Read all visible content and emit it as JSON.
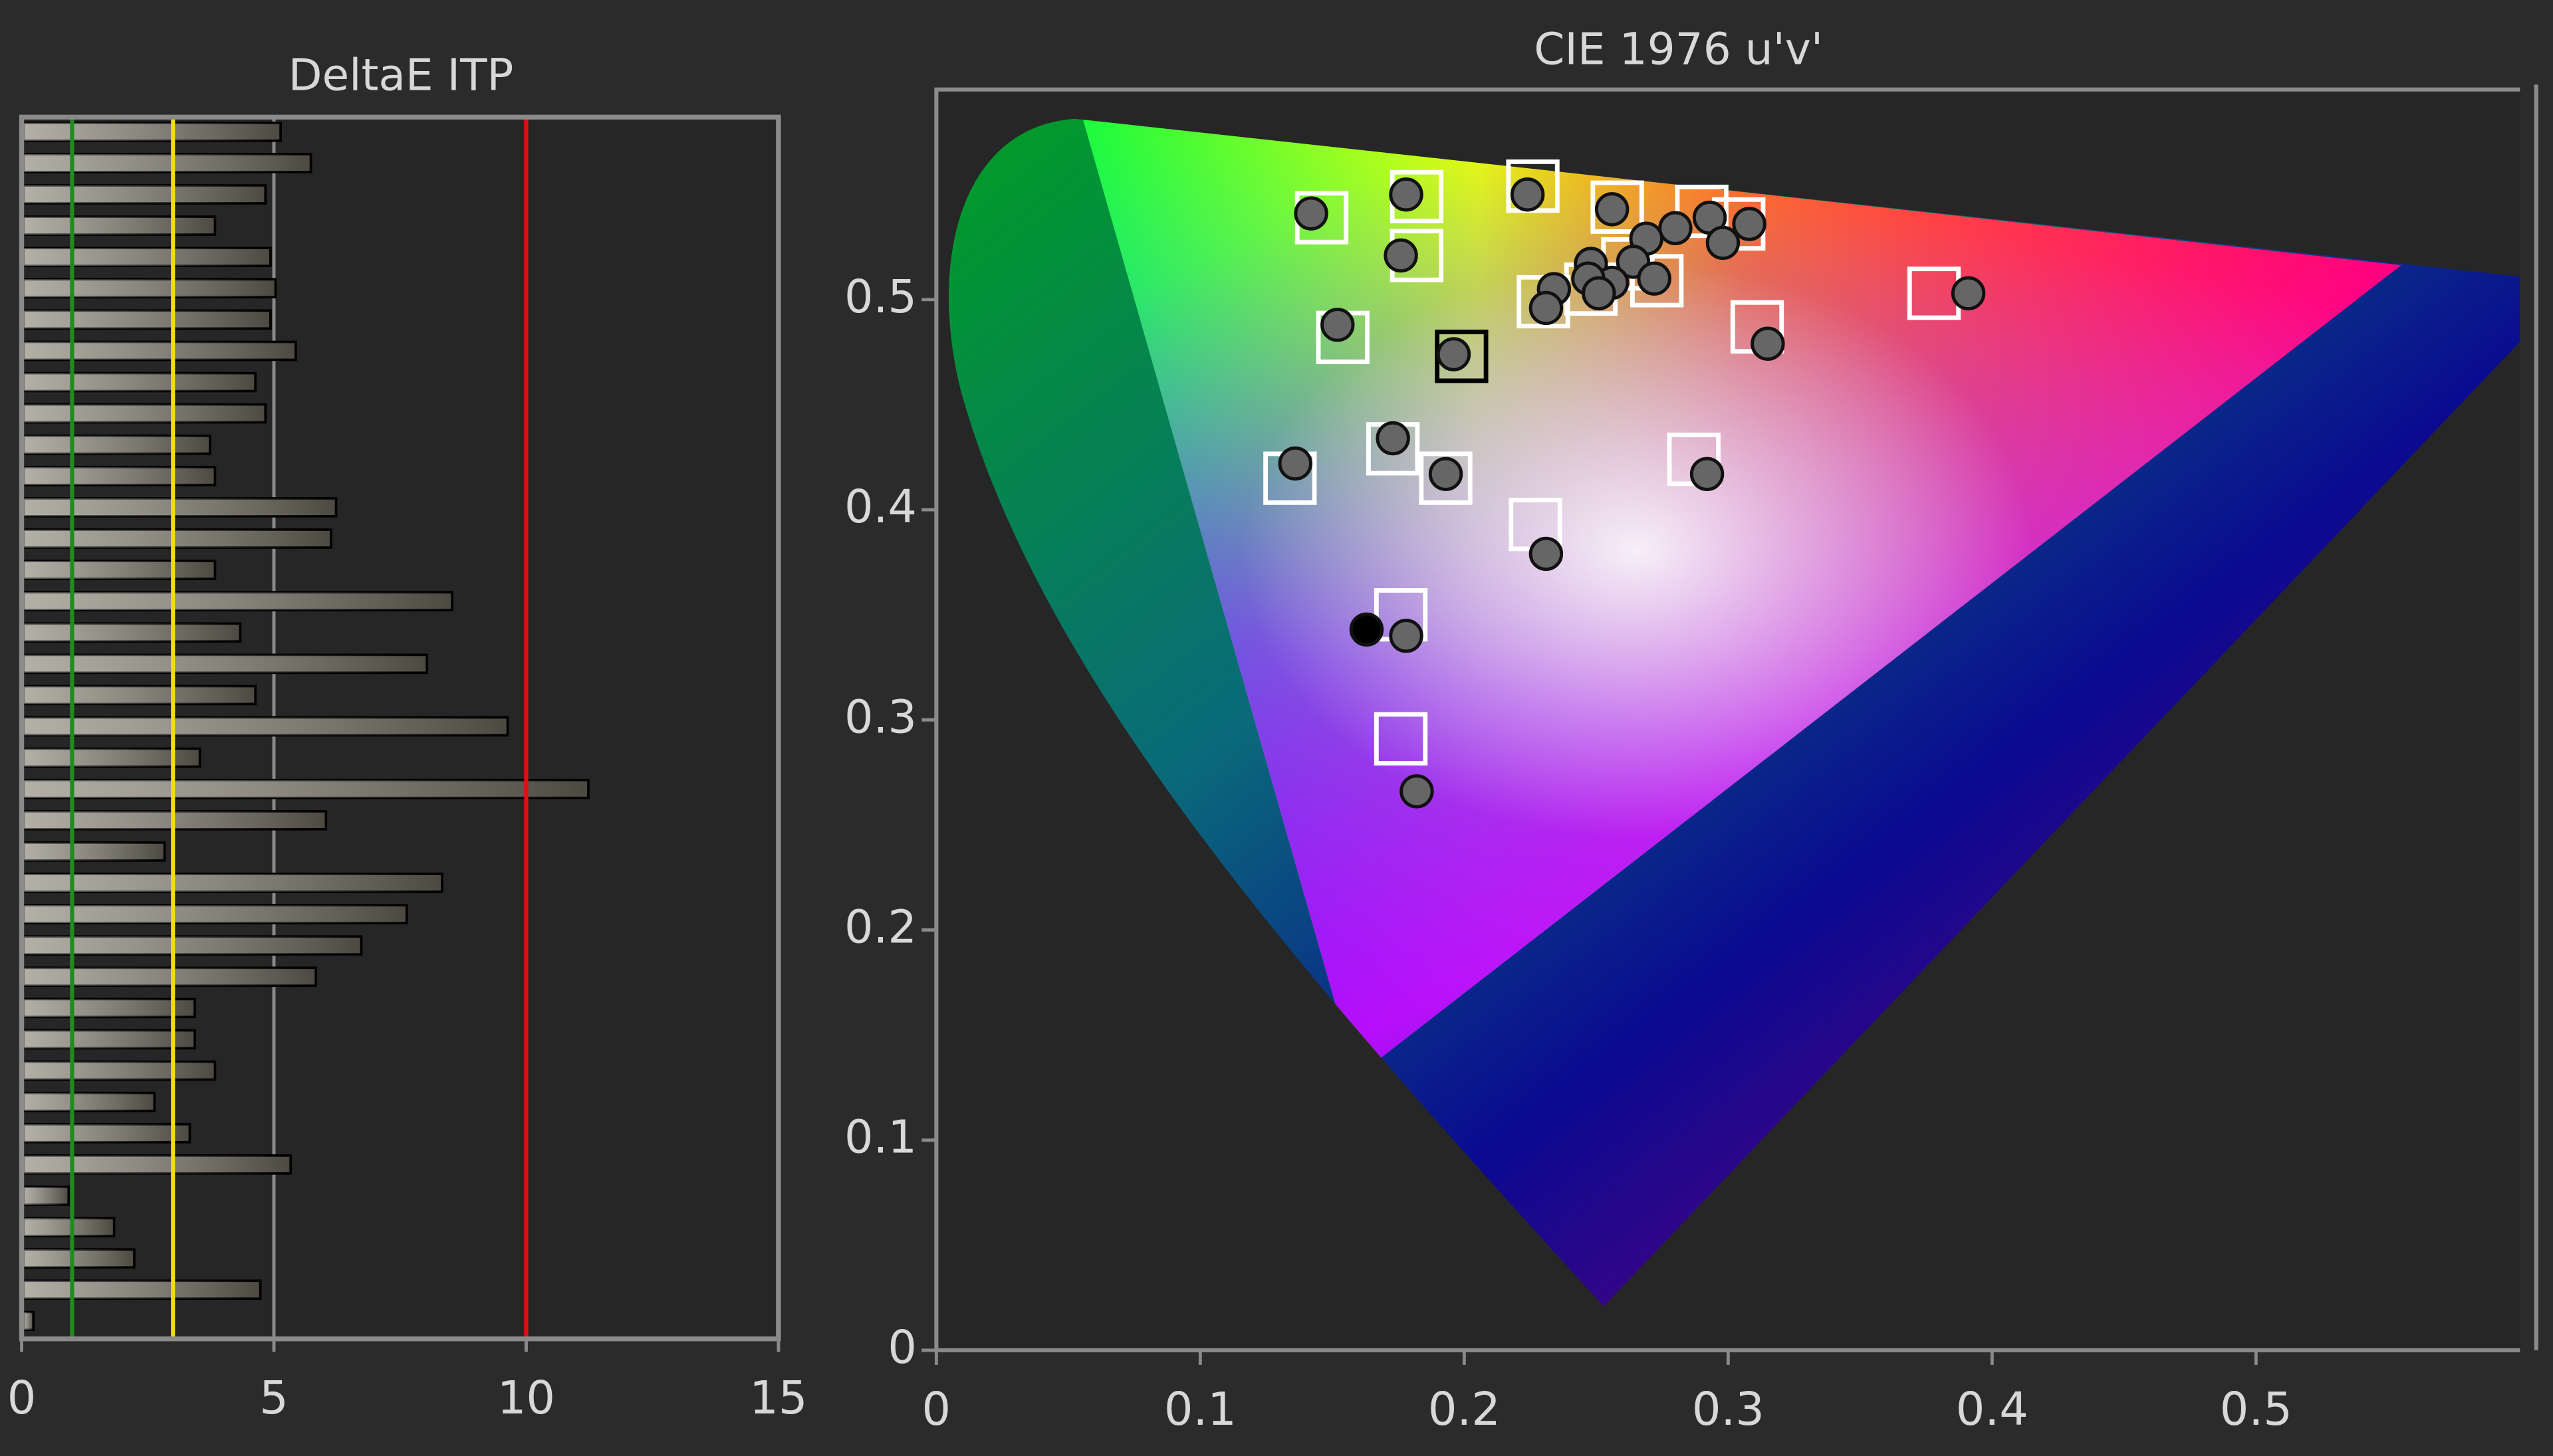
{
  "chart_data": [
    {
      "type": "bar",
      "orientation": "horizontal",
      "title": "DeltaE ITP",
      "values": [
        5.1,
        5.7,
        4.8,
        3.8,
        4.9,
        5.0,
        4.9,
        5.4,
        4.6,
        4.8,
        3.7,
        3.8,
        6.2,
        6.1,
        3.8,
        8.5,
        4.3,
        8.0,
        4.6,
        9.6,
        3.5,
        11.2,
        6.0,
        2.8,
        8.3,
        7.6,
        6.7,
        5.8,
        3.4,
        3.4,
        3.8,
        2.6,
        3.3,
        5.3,
        0.9,
        1.8,
        2.2,
        4.7,
        0.2
      ],
      "color": "#8a8576",
      "xlim": [
        0,
        15
      ],
      "xticks": [
        0,
        5,
        10,
        15
      ],
      "grid": true,
      "reference_lines": [
        {
          "value": 1,
          "color": "#1e8c1e"
        },
        {
          "value": 3,
          "color": "#f0e000"
        },
        {
          "value": 10,
          "color": "#e01010"
        }
      ]
    },
    {
      "type": "scatter",
      "title": "CIE 1976 u'v'",
      "xlim": [
        0,
        0.6
      ],
      "ylim": [
        0,
        0.6
      ],
      "xticks": [
        0,
        0.1,
        0.2,
        0.3,
        0.4,
        0.5
      ],
      "yticks": [
        0,
        0.1,
        0.2,
        0.3,
        0.4,
        0.5
      ],
      "series": [
        {
          "marker": "square",
          "color": "#ffffff",
          "x": [
            0.146,
            0.182,
            0.182,
            0.226,
            0.258,
            0.29,
            0.304,
            0.23,
            0.248,
            0.262,
            0.273,
            0.154,
            0.311,
            0.378,
            0.173,
            0.193,
            0.134,
            0.287,
            0.227,
            0.176,
            0.176
          ],
          "y": [
            0.539,
            0.549,
            0.521,
            0.554,
            0.544,
            0.542,
            0.536,
            0.499,
            0.505,
            0.517,
            0.509,
            0.482,
            0.487,
            0.503,
            0.429,
            0.415,
            0.415,
            0.424,
            0.393,
            0.35,
            0.291
          ]
        },
        {
          "marker": "square",
          "color": "#000000",
          "x": [
            0.199
          ],
          "y": [
            0.473
          ]
        },
        {
          "marker": "circle",
          "color": "#666666",
          "x": [
            0.142,
            0.178,
            0.176,
            0.224,
            0.256,
            0.293,
            0.308,
            0.28,
            0.298,
            0.269,
            0.264,
            0.248,
            0.272,
            0.256,
            0.247,
            0.251,
            0.234,
            0.231,
            0.152,
            0.196,
            0.315,
            0.391,
            0.173,
            0.193,
            0.136,
            0.292,
            0.231,
            0.178,
            0.182
          ],
          "y": [
            0.541,
            0.55,
            0.521,
            0.55,
            0.543,
            0.539,
            0.536,
            0.534,
            0.527,
            0.529,
            0.518,
            0.517,
            0.51,
            0.508,
            0.51,
            0.503,
            0.505,
            0.496,
            0.488,
            0.474,
            0.479,
            0.503,
            0.434,
            0.417,
            0.422,
            0.417,
            0.379,
            0.34,
            0.266
          ]
        },
        {
          "marker": "circle",
          "color": "#000000",
          "x": [
            0.163
          ],
          "y": [
            0.343
          ]
        }
      ]
    }
  ]
}
